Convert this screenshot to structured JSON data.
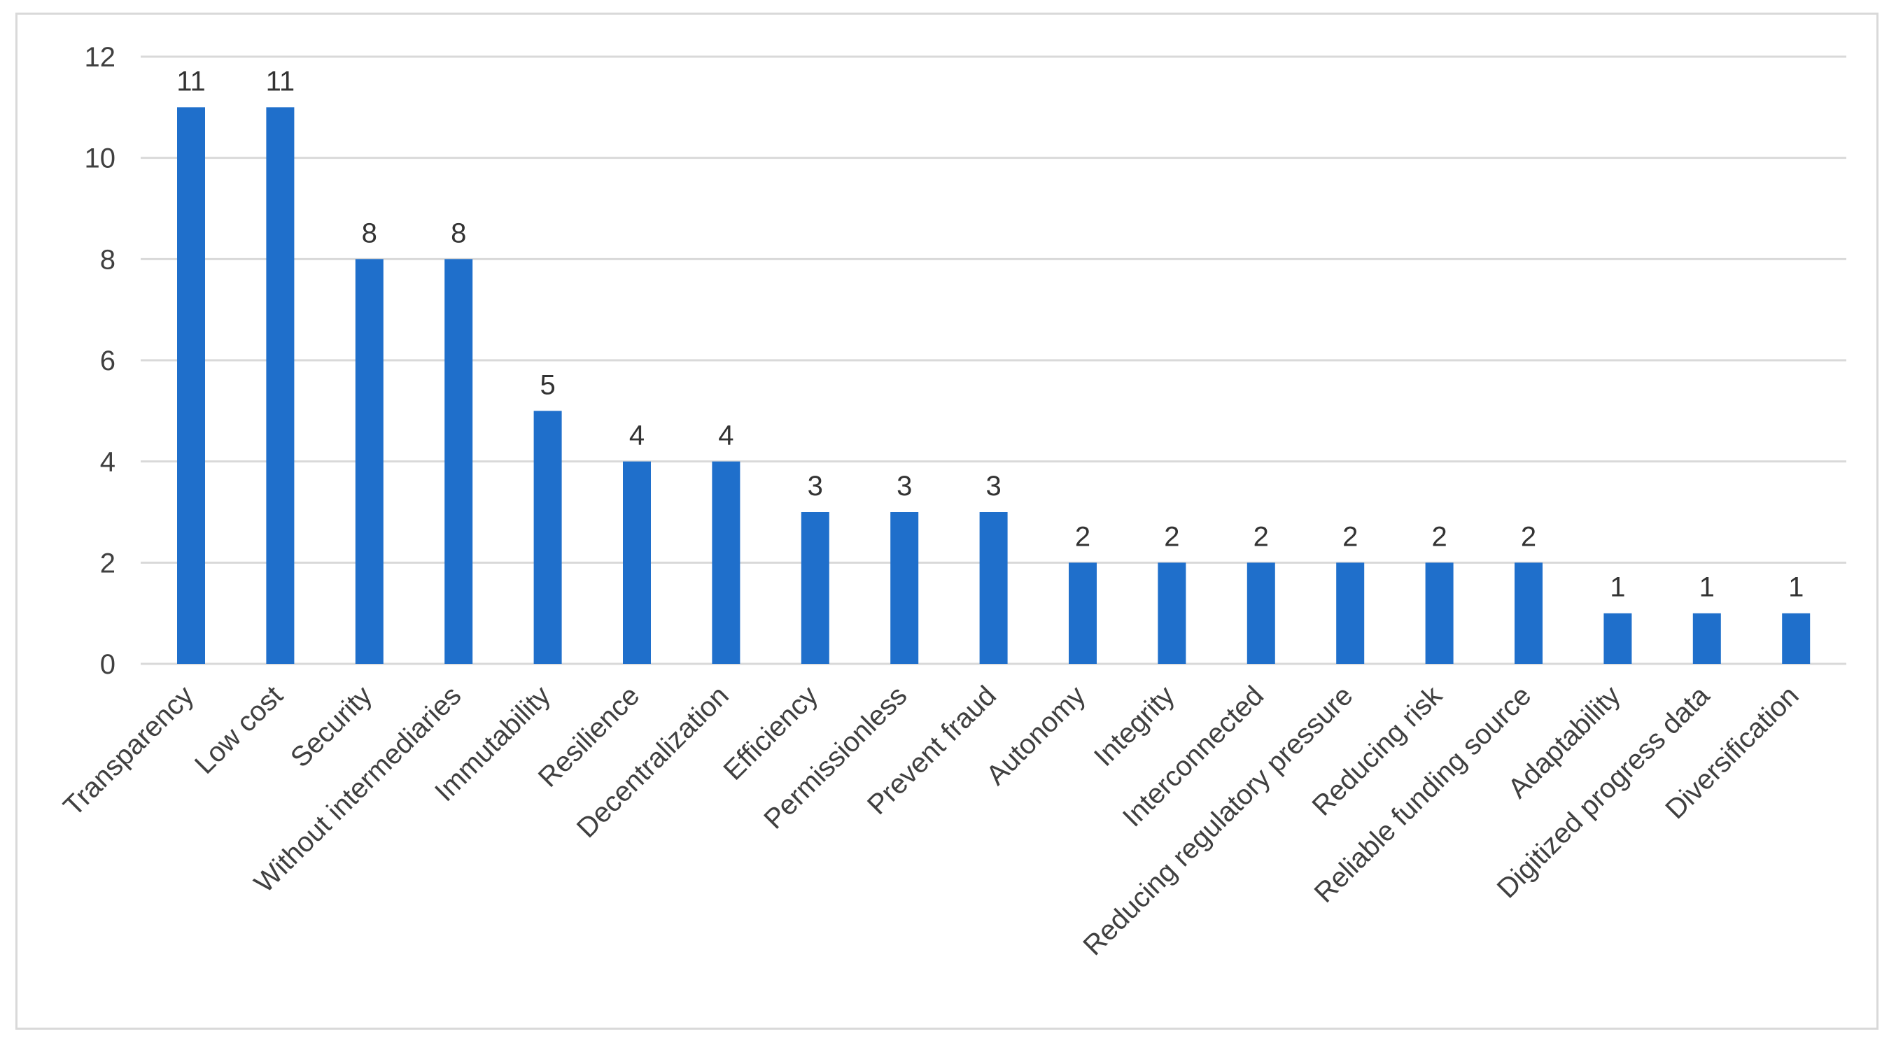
{
  "chart_data": {
    "type": "bar",
    "title": "",
    "xlabel": "",
    "ylabel": "",
    "categories": [
      "Transparency",
      "Low cost",
      "Security",
      "Without intermediaries",
      "Immutability",
      "Resilience",
      "Decentralization",
      "Efficiency",
      "Permissionless",
      "Prevent fraud",
      "Autonomy",
      "Integrity",
      "Interconnected",
      "Reducing regulatory pressure",
      "Reducing risk",
      "Reliable funding source",
      "Adaptability",
      "Digitized progress data",
      "Diversification"
    ],
    "values": [
      11,
      11,
      8,
      8,
      5,
      4,
      4,
      3,
      3,
      3,
      2,
      2,
      2,
      2,
      2,
      2,
      1,
      1,
      1
    ],
    "ylim": [
      0,
      12
    ],
    "yticks": [
      0,
      2,
      4,
      6,
      8,
      10,
      12
    ],
    "grid": true,
    "legend": "none",
    "bar_color": "#1F6FCB",
    "grid_color": "#d9d9d9"
  }
}
